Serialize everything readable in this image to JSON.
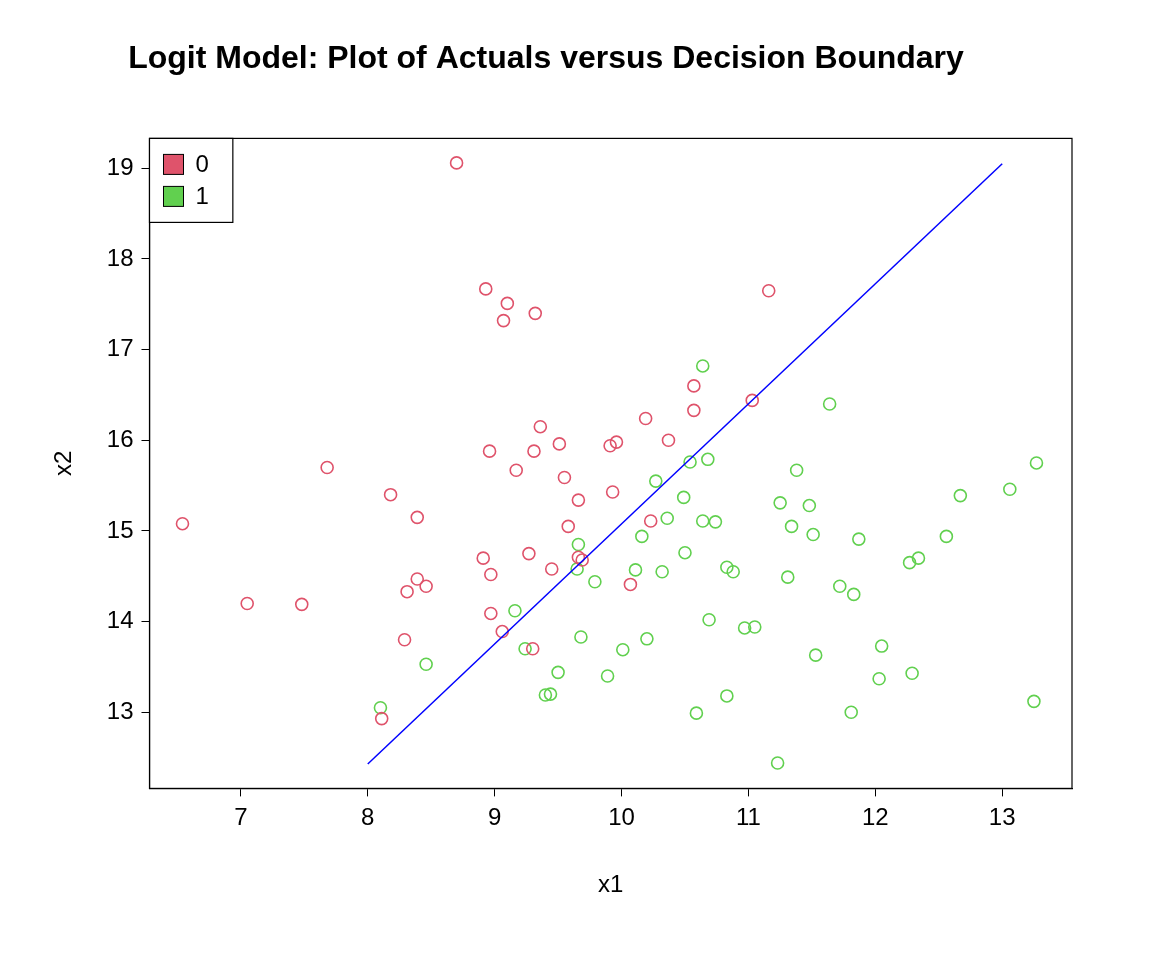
{
  "chart_data": {
    "type": "scatter",
    "title": "Logit Model: Plot of Actuals versus Decision Boundary",
    "x_label": "x1",
    "y_label": "x2",
    "xlim": [
      6.28,
      13.55
    ],
    "ylim": [
      12.16,
      19.33
    ],
    "xticks": [
      7,
      8,
      9,
      10,
      11,
      12,
      13
    ],
    "yticks": [
      13,
      14,
      15,
      16,
      17,
      18,
      19
    ],
    "grid": false,
    "legend": "top-left",
    "series": [
      {
        "name": "0",
        "color": "#DF536B",
        "marker": "open_circle",
        "x": [
          6.54,
          7.05,
          7.48,
          7.68,
          8.18,
          8.39,
          8.39,
          8.46,
          8.31,
          8.29,
          8.11,
          8.7,
          8.93,
          9.1,
          9.07,
          9.32,
          11.16,
          8.96,
          8.91,
          8.97,
          8.97,
          9.06,
          9.3,
          9.27,
          9.31,
          9.36,
          9.17,
          9.51,
          9.55,
          9.58,
          9.45,
          9.66,
          9.66,
          9.69,
          9.93,
          9.91,
          9.96,
          10.19,
          10.37,
          10.23,
          10.07,
          10.57,
          10.57,
          11.03
        ],
        "values": [
          15.08,
          14.2,
          14.19,
          15.7,
          15.4,
          15.15,
          14.47,
          14.39,
          14.33,
          13.8,
          12.93,
          19.06,
          17.67,
          17.51,
          17.32,
          17.4,
          17.65,
          15.88,
          14.7,
          14.52,
          14.09,
          13.89,
          13.7,
          14.75,
          15.88,
          16.15,
          15.67,
          15.96,
          15.59,
          15.05,
          14.58,
          15.34,
          14.71,
          14.68,
          15.43,
          15.94,
          15.98,
          16.24,
          16.0,
          15.11,
          14.41,
          16.6,
          16.33,
          16.44
        ]
      },
      {
        "name": "1",
        "color": "#61D04F",
        "marker": "open_circle",
        "x": [
          8.1,
          8.46,
          9.16,
          9.24,
          9.5,
          9.4,
          9.44,
          9.66,
          9.65,
          9.68,
          9.79,
          9.89,
          10.01,
          10.11,
          10.16,
          10.2,
          10.27,
          10.32,
          10.36,
          10.49,
          10.5,
          10.54,
          10.59,
          10.64,
          10.68,
          10.64,
          10.74,
          10.69,
          10.83,
          10.88,
          10.83,
          10.97,
          11.05,
          11.23,
          11.25,
          11.31,
          11.34,
          11.38,
          11.48,
          11.51,
          11.53,
          11.64,
          11.72,
          11.81,
          11.83,
          11.87,
          12.03,
          12.05,
          12.27,
          12.29,
          12.34,
          12.56,
          12.67,
          13.06,
          13.25,
          13.27
        ],
        "values": [
          13.05,
          13.53,
          14.12,
          13.7,
          13.44,
          13.19,
          13.2,
          14.85,
          14.58,
          13.83,
          14.44,
          13.4,
          13.69,
          14.57,
          14.94,
          13.81,
          15.55,
          14.55,
          15.14,
          15.37,
          14.76,
          15.76,
          12.99,
          16.82,
          15.79,
          15.11,
          15.1,
          14.02,
          14.6,
          14.55,
          13.18,
          13.93,
          13.94,
          12.44,
          15.31,
          14.49,
          15.05,
          15.67,
          15.28,
          14.96,
          13.63,
          16.4,
          14.39,
          13.0,
          14.3,
          14.91,
          13.37,
          13.73,
          14.65,
          13.43,
          14.7,
          14.94,
          15.39,
          15.46,
          13.12,
          15.75
        ]
      },
      {
        "type": "line",
        "color": "#0000FF",
        "line_style": "solid",
        "x": [
          8,
          13
        ],
        "values": [
          12.43,
          19.05
        ]
      }
    ]
  }
}
